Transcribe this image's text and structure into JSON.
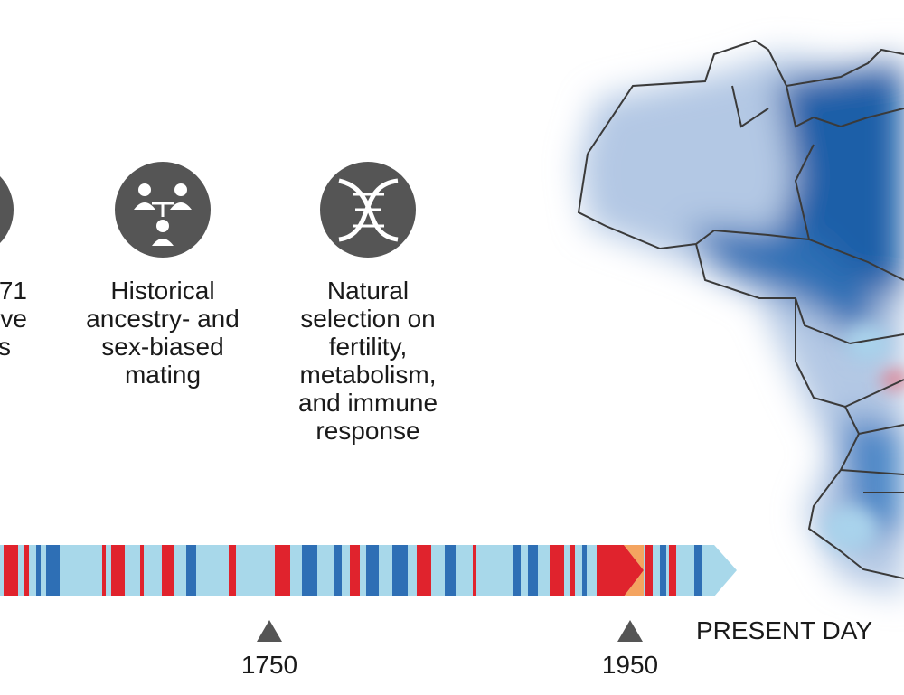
{
  "columns": [
    {
      "lines": [
        "71",
        "ve",
        "s"
      ]
    },
    {
      "lines": [
        "Historical",
        "ancestry- and",
        "sex-biased",
        "mating"
      ]
    },
    {
      "lines": [
        "Natural",
        "selection on",
        "fertility,",
        "metabolism,",
        "and immune",
        "response"
      ]
    }
  ],
  "timeline": {
    "markers": [
      "1750",
      "1950"
    ],
    "end_label": "PRESENT DAY"
  }
}
